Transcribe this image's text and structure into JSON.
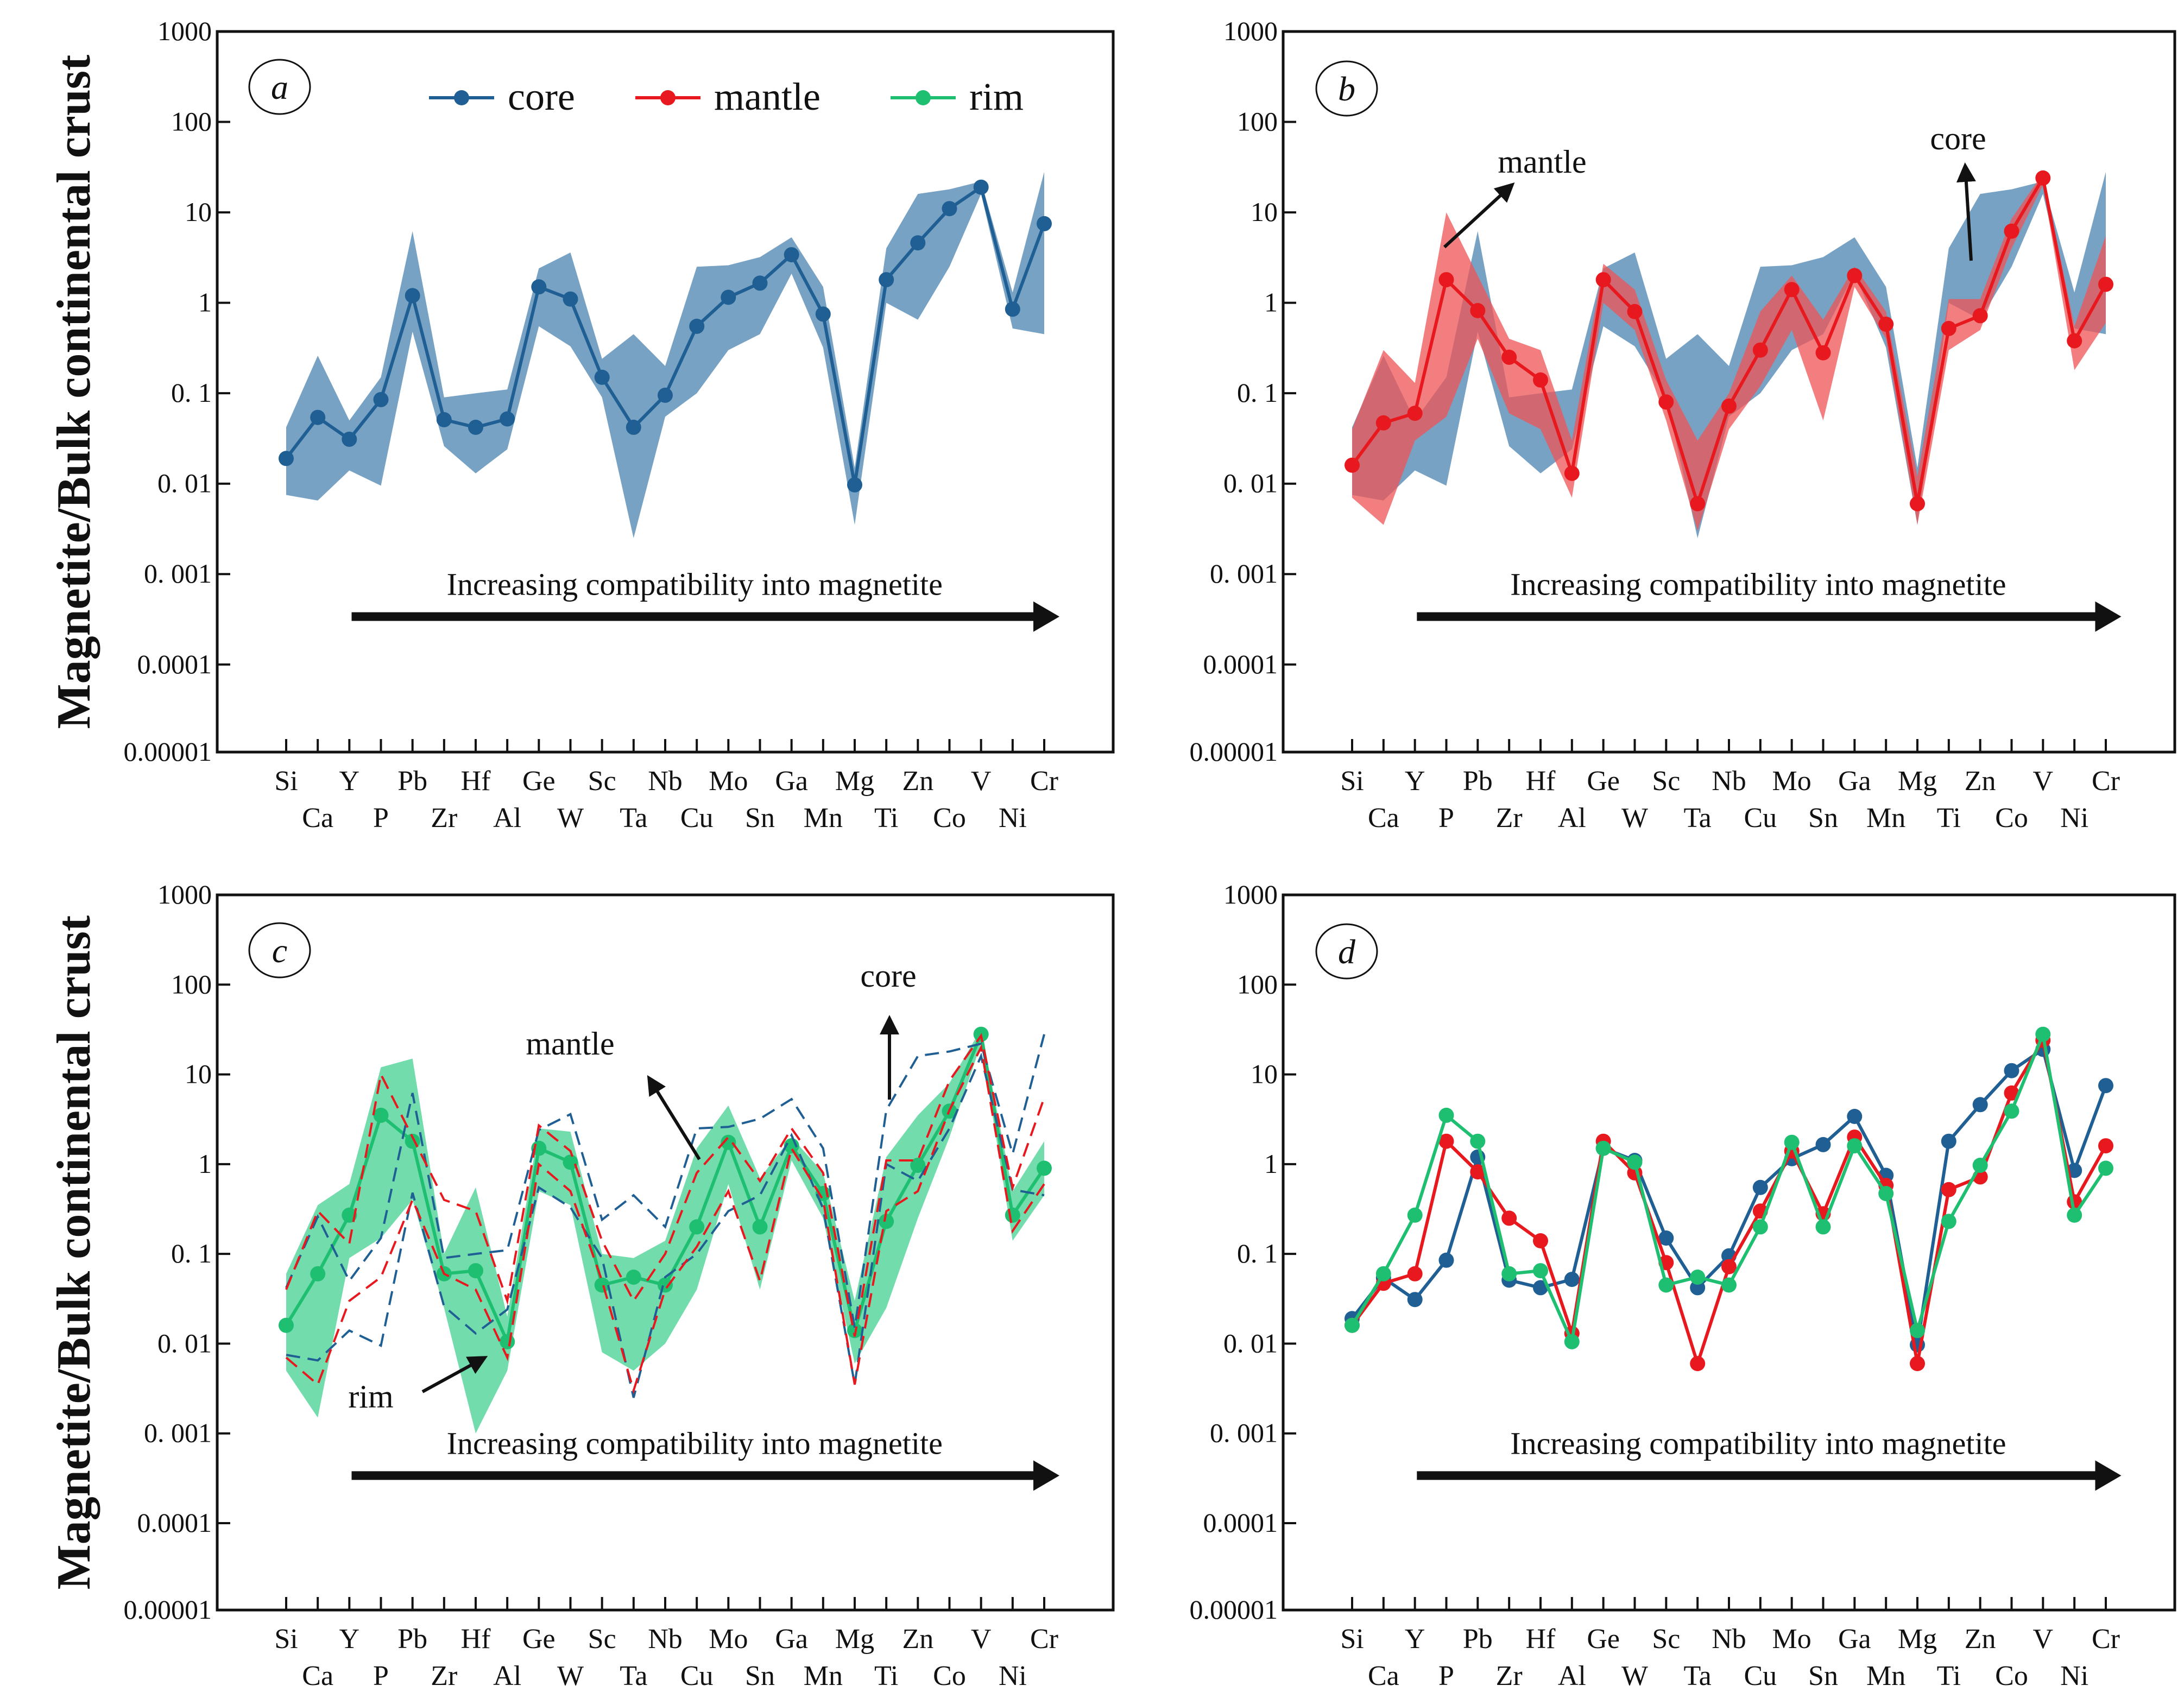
{
  "figure": {
    "ylabel": "Magnetite/Bulk continental crust",
    "arrow_text": "Increasing compatibility into magnetite",
    "colors": {
      "core": "#1f5f93",
      "mantle": "#e8191e",
      "rim": "#1fbf72",
      "core_band": "#5f92b8",
      "mantle_band": "#ef5356",
      "rim_band": "#3ccf8c"
    },
    "legend": [
      {
        "key": "core",
        "label": "core"
      },
      {
        "key": "mantle",
        "label": "mantle"
      },
      {
        "key": "rim",
        "label": "rim"
      }
    ]
  },
  "chart_data": [
    {
      "panel": "a",
      "type": "line",
      "yscale": "log",
      "ylim": [
        1e-05,
        1000
      ],
      "yticks": [
        "1000",
        "100",
        "10",
        "1",
        "0. 1",
        "0. 01",
        "0. 001",
        "0.0001",
        "0.00001"
      ],
      "xlabels_top": [
        "Si",
        "Y",
        "Pb",
        "Hf",
        "Ge",
        "Sc",
        "Nb",
        "Mo",
        "Ga",
        "Mg",
        "Zn",
        "V",
        "Cr"
      ],
      "xlabels_bottom": [
        "Ca",
        "P",
        "Zr",
        "Al",
        "W",
        "Ta",
        "Cu",
        "Sn",
        "Mn",
        "Ti",
        "Co",
        "Ni"
      ],
      "elements": [
        "Si",
        "Ca",
        "Y",
        "P",
        "Pb",
        "Zr",
        "Hf",
        "Al",
        "Ge",
        "W",
        "Sc",
        "Ta",
        "Nb",
        "Cu",
        "Mo",
        "Sn",
        "Ga",
        "Mn",
        "Mg",
        "Ti",
        "Zn",
        "Co",
        "V",
        "Ni",
        "Cr"
      ],
      "series": [
        {
          "name": "core",
          "style": "solid",
          "values": [
            0.019,
            0.054,
            0.031,
            0.085,
            1.2,
            0.051,
            0.042,
            0.052,
            1.5,
            1.1,
            0.15,
            0.042,
            0.095,
            0.55,
            1.15,
            1.65,
            3.4,
            0.75,
            0.0097,
            1.8,
            4.6,
            11,
            19,
            0.85,
            7.5
          ]
        }
      ],
      "bands": [
        {
          "name": "core",
          "upper": [
            0.042,
            0.26,
            0.05,
            0.15,
            6.2,
            0.09,
            0.1,
            0.11,
            2.4,
            3.6,
            0.24,
            0.45,
            0.2,
            2.5,
            2.6,
            3.2,
            5.3,
            1.5,
            0.015,
            4.0,
            16,
            18,
            22,
            1.3,
            28
          ],
          "lower": [
            0.0075,
            0.0065,
            0.014,
            0.0095,
            0.48,
            0.026,
            0.013,
            0.024,
            0.55,
            0.33,
            0.09,
            0.0025,
            0.055,
            0.1,
            0.3,
            0.45,
            2.1,
            0.32,
            0.0035,
            1.0,
            0.65,
            2.5,
            16,
            0.52,
            0.45
          ]
        }
      ],
      "annotations": []
    },
    {
      "panel": "b",
      "type": "line",
      "yscale": "log",
      "ylim": [
        1e-05,
        1000
      ],
      "yticks": [
        "1000",
        "100",
        "10",
        "1",
        "0. 1",
        "0. 01",
        "0. 001",
        "0.0001",
        "0.00001"
      ],
      "xlabels_top": [
        "Si",
        "Y",
        "Pb",
        "Hf",
        "Ge",
        "Sc",
        "Nb",
        "Mo",
        "Ga",
        "Mg",
        "Zn",
        "V",
        "Cr"
      ],
      "xlabels_bottom": [
        "Ca",
        "P",
        "Zr",
        "Al",
        "W",
        "Ta",
        "Cu",
        "Sn",
        "Mn",
        "Ti",
        "Co",
        "Ni"
      ],
      "elements": [
        "Si",
        "Ca",
        "Y",
        "P",
        "Pb",
        "Zr",
        "Hf",
        "Al",
        "Ge",
        "W",
        "Sc",
        "Ta",
        "Nb",
        "Cu",
        "Mo",
        "Sn",
        "Ga",
        "Mn",
        "Mg",
        "Ti",
        "Zn",
        "Co",
        "V",
        "Ni",
        "Cr"
      ],
      "series": [
        {
          "name": "mantle",
          "style": "solid",
          "values": [
            0.016,
            0.047,
            0.06,
            1.8,
            0.82,
            0.25,
            0.14,
            0.013,
            1.8,
            0.8,
            0.08,
            0.006,
            0.072,
            0.3,
            1.4,
            0.28,
            2.0,
            0.58,
            0.006,
            0.52,
            0.72,
            6.2,
            24,
            0.38,
            1.6
          ]
        }
      ],
      "bands": [
        {
          "name": "core",
          "upper": [
            0.042,
            0.26,
            0.05,
            0.15,
            6.2,
            0.09,
            0.1,
            0.11,
            2.4,
            3.6,
            0.24,
            0.45,
            0.2,
            2.5,
            2.6,
            3.2,
            5.3,
            1.5,
            0.015,
            4.0,
            16,
            18,
            22,
            1.3,
            28
          ],
          "lower": [
            0.0075,
            0.0065,
            0.014,
            0.0095,
            0.48,
            0.026,
            0.013,
            0.024,
            0.55,
            0.33,
            0.09,
            0.0025,
            0.055,
            0.1,
            0.3,
            0.45,
            2.1,
            0.32,
            0.0035,
            1.0,
            0.65,
            2.5,
            16,
            0.52,
            0.45
          ]
        },
        {
          "name": "mantle",
          "upper": [
            0.04,
            0.3,
            0.13,
            10,
            2.0,
            0.4,
            0.3,
            0.03,
            2.7,
            1.4,
            0.14,
            0.03,
            0.1,
            0.8,
            2.0,
            0.65,
            2.5,
            0.8,
            0.012,
            1.1,
            1.1,
            8.5,
            27,
            0.55,
            5.5
          ],
          "lower": [
            0.007,
            0.0035,
            0.03,
            0.055,
            0.4,
            0.06,
            0.04,
            0.007,
            1.0,
            0.5,
            0.05,
            0.003,
            0.04,
            0.12,
            0.5,
            0.05,
            1.5,
            0.4,
            0.0035,
            0.3,
            0.5,
            4.0,
            20,
            0.18,
            0.6
          ]
        }
      ],
      "annotations": [
        {
          "text": "mantle",
          "role": "mantle-label"
        },
        {
          "text": "core",
          "role": "core-label"
        }
      ]
    },
    {
      "panel": "c",
      "type": "line",
      "yscale": "log",
      "ylim": [
        1e-05,
        1000
      ],
      "yticks": [
        "1000",
        "100",
        "10",
        "1",
        "0. 1",
        "0. 01",
        "0. 001",
        "0.0001",
        "0.00001"
      ],
      "xlabels_top": [
        "Si",
        "Y",
        "Pb",
        "Hf",
        "Ge",
        "Sc",
        "Nb",
        "Mo",
        "Ga",
        "Mg",
        "Zn",
        "V",
        "Cr"
      ],
      "xlabels_bottom": [
        "Ca",
        "P",
        "Zr",
        "Al",
        "W",
        "Ta",
        "Cu",
        "Sn",
        "Mn",
        "Ti",
        "Co",
        "Ni"
      ],
      "elements": [
        "Si",
        "Ca",
        "Y",
        "P",
        "Pb",
        "Zr",
        "Hf",
        "Al",
        "Ge",
        "W",
        "Sc",
        "Ta",
        "Nb",
        "Cu",
        "Mo",
        "Sn",
        "Ga",
        "Mn",
        "Mg",
        "Ti",
        "Zn",
        "Co",
        "V",
        "Ni",
        "Cr"
      ],
      "series": [
        {
          "name": "rim",
          "style": "solid",
          "values": [
            0.016,
            0.06,
            0.27,
            3.5,
            1.8,
            0.06,
            0.065,
            0.0105,
            1.5,
            1.05,
            0.045,
            0.055,
            0.045,
            0.2,
            1.75,
            0.2,
            1.6,
            0.47,
            0.014,
            0.23,
            0.97,
            3.9,
            28,
            0.27,
            0.9
          ]
        },
        {
          "name": "core",
          "style": "dashed-upper",
          "values": [
            0.042,
            0.26,
            0.05,
            0.15,
            6.2,
            0.09,
            0.1,
            0.11,
            2.4,
            3.6,
            0.24,
            0.45,
            0.2,
            2.5,
            2.6,
            3.2,
            5.3,
            1.5,
            0.015,
            4.0,
            16,
            18,
            22,
            1.3,
            28
          ]
        },
        {
          "name": "core",
          "style": "dashed-lower",
          "values": [
            0.0075,
            0.0065,
            0.014,
            0.0095,
            0.48,
            0.026,
            0.013,
            0.024,
            0.55,
            0.33,
            0.09,
            0.0025,
            0.055,
            0.1,
            0.3,
            0.45,
            2.1,
            0.32,
            0.0035,
            1.0,
            0.65,
            2.5,
            16,
            0.52,
            0.45
          ]
        },
        {
          "name": "mantle",
          "style": "dashed-upper",
          "values": [
            0.04,
            0.3,
            0.13,
            10,
            2.0,
            0.4,
            0.3,
            0.03,
            2.7,
            1.4,
            0.14,
            0.03,
            0.1,
            0.8,
            2.0,
            0.65,
            2.5,
            0.8,
            0.012,
            1.1,
            1.1,
            8.5,
            27,
            0.55,
            5.5
          ]
        },
        {
          "name": "mantle",
          "style": "dashed-lower",
          "values": [
            0.007,
            0.0035,
            0.03,
            0.055,
            0.4,
            0.06,
            0.04,
            0.007,
            1.0,
            0.5,
            0.05,
            0.003,
            0.04,
            0.12,
            0.5,
            0.05,
            1.5,
            0.4,
            0.0035,
            0.3,
            0.5,
            4.0,
            20,
            0.18,
            0.6
          ]
        }
      ],
      "bands": [
        {
          "name": "rim",
          "upper": [
            0.06,
            0.35,
            0.6,
            12,
            15,
            0.1,
            0.55,
            0.02,
            2.5,
            2.3,
            0.1,
            0.09,
            0.14,
            1.5,
            4.5,
            0.7,
            2.0,
            0.8,
            0.03,
            1.2,
            3.5,
            8,
            32,
            0.5,
            1.8
          ],
          "lower": [
            0.005,
            0.0015,
            0.09,
            0.15,
            0.4,
            0.025,
            0.001,
            0.005,
            0.5,
            0.35,
            0.008,
            0.005,
            0.01,
            0.04,
            0.6,
            0.04,
            1.1,
            0.25,
            0.006,
            0.025,
            0.25,
            2.0,
            22,
            0.14,
            0.45
          ]
        }
      ],
      "annotations": [
        {
          "text": "mantle",
          "role": "mantle-label"
        },
        {
          "text": "core",
          "role": "core-label"
        },
        {
          "text": "rim",
          "role": "rim-label"
        }
      ]
    },
    {
      "panel": "d",
      "type": "line",
      "yscale": "log",
      "ylim": [
        1e-05,
        1000
      ],
      "yticks": [
        "1000",
        "100",
        "10",
        "1",
        "0. 1",
        "0. 01",
        "0. 001",
        "0.0001",
        "0.00001"
      ],
      "xlabels_top": [
        "Si",
        "Y",
        "Pb",
        "Hf",
        "Ge",
        "Sc",
        "Nb",
        "Mo",
        "Ga",
        "Mg",
        "Zn",
        "V",
        "Cr"
      ],
      "xlabels_bottom": [
        "Ca",
        "P",
        "Zr",
        "Al",
        "W",
        "Ta",
        "Cu",
        "Sn",
        "Mn",
        "Ti",
        "Co",
        "Ni"
      ],
      "elements": [
        "Si",
        "Ca",
        "Y",
        "P",
        "Pb",
        "Zr",
        "Hf",
        "Al",
        "Ge",
        "W",
        "Sc",
        "Ta",
        "Nb",
        "Cu",
        "Mo",
        "Sn",
        "Ga",
        "Mn",
        "Mg",
        "Ti",
        "Zn",
        "Co",
        "V",
        "Ni",
        "Cr"
      ],
      "series": [
        {
          "name": "core",
          "style": "solid",
          "values": [
            0.019,
            0.054,
            0.031,
            0.085,
            1.2,
            0.051,
            0.042,
            0.052,
            1.5,
            1.1,
            0.15,
            0.042,
            0.095,
            0.55,
            1.15,
            1.65,
            3.4,
            0.75,
            0.0097,
            1.8,
            4.6,
            11,
            19,
            0.85,
            7.5
          ]
        },
        {
          "name": "mantle",
          "style": "solid",
          "values": [
            0.016,
            0.047,
            0.06,
            1.8,
            0.82,
            0.25,
            0.14,
            0.013,
            1.8,
            0.8,
            0.08,
            0.006,
            0.072,
            0.3,
            1.4,
            0.28,
            2.0,
            0.58,
            0.006,
            0.52,
            0.72,
            6.2,
            24,
            0.38,
            1.6
          ]
        },
        {
          "name": "rim",
          "style": "solid",
          "values": [
            0.016,
            0.06,
            0.27,
            3.5,
            1.8,
            0.06,
            0.065,
            0.0105,
            1.5,
            1.05,
            0.045,
            0.055,
            0.045,
            0.2,
            1.75,
            0.2,
            1.6,
            0.47,
            0.014,
            0.23,
            0.97,
            3.9,
            28,
            0.27,
            0.9
          ]
        }
      ],
      "bands": [],
      "annotations": []
    }
  ]
}
